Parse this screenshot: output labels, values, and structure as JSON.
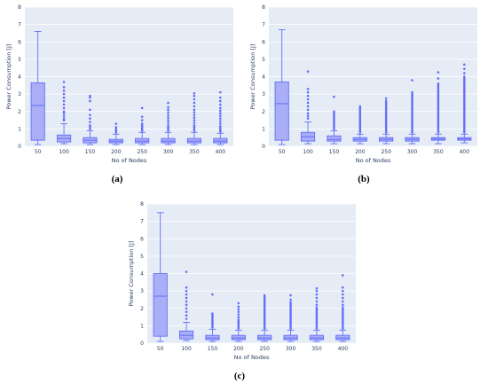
{
  "colors": {
    "plot_bg": "#e5ecf6",
    "grid": "#ffffff",
    "box_fill": "#a9aef6",
    "box_line": "#636efa"
  },
  "chart_data": [
    {
      "type": "box",
      "panel_label": "(a)",
      "xlabel": "No of Nodes",
      "ylabel": "Power Consumption [J]",
      "categories": [
        "50",
        "100",
        "150",
        "200",
        "250",
        "300",
        "350",
        "400"
      ],
      "ylim": [
        0,
        8
      ],
      "yticks": [
        0,
        1,
        2,
        3,
        4,
        5,
        6,
        7,
        8
      ],
      "grid": true,
      "boxes": [
        {
          "min": 0.1,
          "q1": 0.35,
          "median": 2.35,
          "q3": 3.65,
          "max": 6.6,
          "outliers": []
        },
        {
          "min": 0.15,
          "q1": 0.25,
          "median": 0.45,
          "q3": 0.65,
          "max": 1.3,
          "outliers": [
            1.5,
            1.6,
            1.75,
            1.9,
            2.0,
            2.2,
            2.4,
            2.6,
            2.8,
            3.0,
            3.2,
            3.4,
            3.7
          ]
        },
        {
          "min": 0.1,
          "q1": 0.2,
          "median": 0.35,
          "q3": 0.5,
          "max": 0.9,
          "outliers": [
            1.0,
            1.1,
            1.2,
            1.4,
            1.6,
            1.8,
            2.1,
            2.6,
            2.8,
            2.9
          ]
        },
        {
          "min": 0.1,
          "q1": 0.2,
          "median": 0.3,
          "q3": 0.4,
          "max": 0.7,
          "outliers": [
            0.8,
            0.9,
            1.0,
            1.1,
            1.3
          ]
        },
        {
          "min": 0.1,
          "q1": 0.2,
          "median": 0.3,
          "q3": 0.45,
          "max": 0.8,
          "outliers": [
            0.9,
            1.0,
            1.1,
            1.2,
            1.3,
            1.5,
            1.7,
            2.2
          ]
        },
        {
          "min": 0.1,
          "q1": 0.2,
          "median": 0.3,
          "q3": 0.45,
          "max": 0.8,
          "outliers": [
            0.9,
            1.0,
            1.1,
            1.2,
            1.35,
            1.5,
            1.65,
            1.8,
            1.95,
            2.1,
            2.25,
            2.5
          ]
        },
        {
          "min": 0.1,
          "q1": 0.2,
          "median": 0.3,
          "q3": 0.45,
          "max": 0.8,
          "outliers": [
            0.9,
            1.0,
            1.1,
            1.2,
            1.35,
            1.5,
            1.65,
            1.8,
            1.95,
            2.1,
            2.3,
            2.5,
            2.7,
            2.9,
            3.05
          ]
        },
        {
          "min": 0.1,
          "q1": 0.2,
          "median": 0.3,
          "q3": 0.45,
          "max": 0.75,
          "outliers": [
            0.85,
            0.95,
            1.05,
            1.15,
            1.3,
            1.45,
            1.6,
            1.75,
            1.9,
            2.05,
            2.2,
            2.4,
            2.6,
            2.8,
            3.1
          ]
        }
      ]
    },
    {
      "type": "box",
      "panel_label": "(b)",
      "xlabel": "No of Nodes",
      "ylabel": "Power Consumption [J]",
      "categories": [
        "50",
        "100",
        "150",
        "200",
        "250",
        "300",
        "350",
        "400"
      ],
      "ylim": [
        0,
        8
      ],
      "yticks": [
        0,
        1,
        2,
        3,
        4,
        5,
        6,
        7,
        8
      ],
      "grid": true,
      "boxes": [
        {
          "min": 0.1,
          "q1": 0.35,
          "median": 2.45,
          "q3": 3.7,
          "max": 6.7,
          "outliers": []
        },
        {
          "min": 0.15,
          "q1": 0.3,
          "median": 0.55,
          "q3": 0.8,
          "max": 1.4,
          "outliers": [
            1.6,
            1.75,
            1.9,
            2.1,
            2.3,
            2.5,
            2.7,
            2.9,
            3.1,
            3.3,
            4.3
          ]
        },
        {
          "min": 0.15,
          "q1": 0.3,
          "median": 0.4,
          "q3": 0.6,
          "max": 0.9,
          "outliers": [
            1.0,
            1.1,
            1.2,
            1.3,
            1.4,
            1.5,
            1.6,
            1.7,
            1.8,
            1.9,
            2.0,
            2.85
          ]
        },
        {
          "min": 0.15,
          "q1": 0.3,
          "median": 0.4,
          "q3": 0.5,
          "max": 0.7,
          "outliers": [
            0.8,
            0.9,
            1.0,
            1.1,
            1.2,
            1.3,
            1.4,
            1.5,
            1.6,
            1.7,
            1.8,
            1.9,
            2.0,
            2.1,
            2.2,
            2.3
          ]
        },
        {
          "min": 0.15,
          "q1": 0.3,
          "median": 0.4,
          "q3": 0.5,
          "max": 0.7,
          "outliers": [
            0.8,
            0.9,
            1.0,
            1.1,
            1.2,
            1.3,
            1.4,
            1.5,
            1.6,
            1.7,
            1.8,
            1.9,
            2.0,
            2.1,
            2.2,
            2.3,
            2.4,
            2.5,
            2.6,
            2.75
          ]
        },
        {
          "min": 0.15,
          "q1": 0.3,
          "median": 0.4,
          "q3": 0.5,
          "max": 0.7,
          "outliers": [
            0.8,
            0.9,
            1.0,
            1.1,
            1.2,
            1.3,
            1.4,
            1.5,
            1.6,
            1.7,
            1.8,
            1.9,
            2.0,
            2.1,
            2.2,
            2.3,
            2.4,
            2.5,
            2.6,
            2.7,
            2.8,
            2.9,
            3.0,
            3.1,
            3.8
          ]
        },
        {
          "min": 0.15,
          "q1": 0.35,
          "median": 0.42,
          "q3": 0.5,
          "max": 0.7,
          "outliers": [
            0.8,
            0.9,
            1.0,
            1.1,
            1.2,
            1.3,
            1.4,
            1.5,
            1.6,
            1.7,
            1.8,
            1.9,
            2.0,
            2.1,
            2.2,
            2.3,
            2.4,
            2.5,
            2.6,
            2.7,
            2.8,
            2.9,
            3.0,
            3.1,
            3.2,
            3.3,
            3.4,
            3.5,
            3.6,
            3.9,
            4.25
          ]
        },
        {
          "min": 0.2,
          "q1": 0.35,
          "median": 0.42,
          "q3": 0.5,
          "max": 0.7,
          "outliers": [
            0.8,
            0.9,
            1.0,
            1.1,
            1.2,
            1.3,
            1.4,
            1.5,
            1.6,
            1.7,
            1.8,
            1.9,
            2.0,
            2.1,
            2.2,
            2.3,
            2.4,
            2.5,
            2.6,
            2.7,
            2.8,
            2.9,
            3.0,
            3.1,
            3.2,
            3.3,
            3.4,
            3.5,
            3.6,
            3.7,
            3.8,
            3.9,
            4.0,
            4.2,
            4.45,
            4.7
          ]
        }
      ]
    },
    {
      "type": "box",
      "panel_label": "(c)",
      "xlabel": "No of Nodes",
      "ylabel": "Power Consumption [J]",
      "categories": [
        "50",
        "100",
        "150",
        "200",
        "250",
        "300",
        "350",
        "400"
      ],
      "ylim": [
        0,
        8
      ],
      "yticks": [
        0,
        1,
        2,
        3,
        4,
        5,
        6,
        7,
        8
      ],
      "grid": true,
      "boxes": [
        {
          "min": 0.1,
          "q1": 0.4,
          "median": 2.7,
          "q3": 4.0,
          "max": 7.5,
          "outliers": []
        },
        {
          "min": 0.15,
          "q1": 0.25,
          "median": 0.45,
          "q3": 0.7,
          "max": 1.2,
          "outliers": [
            1.4,
            1.6,
            1.8,
            2.0,
            2.2,
            2.4,
            2.6,
            2.8,
            3.0,
            3.2,
            4.1
          ]
        },
        {
          "min": 0.1,
          "q1": 0.2,
          "median": 0.3,
          "q3": 0.45,
          "max": 0.8,
          "outliers": [
            0.9,
            1.0,
            1.1,
            1.2,
            1.3,
            1.4,
            1.5,
            1.6,
            1.7,
            2.8
          ]
        },
        {
          "min": 0.1,
          "q1": 0.2,
          "median": 0.3,
          "q3": 0.45,
          "max": 0.75,
          "outliers": [
            0.85,
            0.95,
            1.05,
            1.15,
            1.25,
            1.35,
            1.5,
            1.65,
            1.8,
            1.95,
            2.1,
            2.3
          ]
        },
        {
          "min": 0.1,
          "q1": 0.2,
          "median": 0.3,
          "q3": 0.45,
          "max": 0.75,
          "outliers": [
            0.85,
            0.95,
            1.05,
            1.15,
            1.25,
            1.35,
            1.45,
            1.55,
            1.65,
            1.75,
            1.85,
            1.95,
            2.05,
            2.15,
            2.25,
            2.35,
            2.45,
            2.55,
            2.65,
            2.75
          ]
        },
        {
          "min": 0.1,
          "q1": 0.2,
          "median": 0.3,
          "q3": 0.45,
          "max": 0.75,
          "outliers": [
            0.85,
            0.95,
            1.05,
            1.15,
            1.25,
            1.35,
            1.45,
            1.55,
            1.65,
            1.75,
            1.85,
            1.95,
            2.05,
            2.15,
            2.25,
            2.35,
            2.5,
            2.75
          ]
        },
        {
          "min": 0.1,
          "q1": 0.2,
          "median": 0.3,
          "q3": 0.45,
          "max": 0.75,
          "outliers": [
            0.85,
            0.95,
            1.05,
            1.15,
            1.25,
            1.35,
            1.45,
            1.55,
            1.65,
            1.75,
            1.85,
            1.95,
            2.05,
            2.2,
            2.4,
            2.6,
            2.8,
            3.0,
            3.15
          ]
        },
        {
          "min": 0.1,
          "q1": 0.2,
          "median": 0.3,
          "q3": 0.45,
          "max": 0.75,
          "outliers": [
            0.85,
            0.95,
            1.05,
            1.15,
            1.25,
            1.35,
            1.45,
            1.55,
            1.65,
            1.75,
            1.85,
            1.95,
            2.05,
            2.2,
            2.4,
            2.6,
            2.8,
            3.0,
            3.2,
            3.9
          ]
        }
      ]
    }
  ]
}
